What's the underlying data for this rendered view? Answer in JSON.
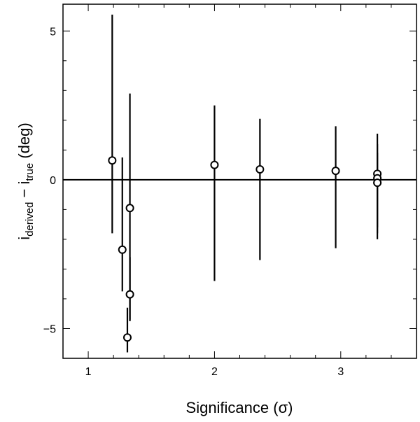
{
  "chart_data": {
    "type": "scatter",
    "title": "",
    "xlabel": "Significance (σ)",
    "ylabel": {
      "main": "i",
      "sub1": "derived",
      "minus": " − i",
      "sub2": "true",
      "tail": " (deg)"
    },
    "xlim": [
      0.8,
      3.6
    ],
    "ylim": [
      -6.0,
      5.9
    ],
    "x_ticks": [
      {
        "value": 1,
        "label": "1"
      },
      {
        "value": 2,
        "label": "2"
      },
      {
        "value": 3,
        "label": "3"
      }
    ],
    "y_ticks": [
      {
        "value": -5,
        "label": "−5"
      },
      {
        "value": 0,
        "label": "0"
      },
      {
        "value": 5,
        "label": "5"
      }
    ],
    "x_minor_step": 0.2,
    "y_minor_step": 1,
    "reference_line_y": 0,
    "grid": false,
    "points": [
      {
        "x": 1.19,
        "y": 0.65,
        "ylo": -1.8,
        "yhi": 5.55
      },
      {
        "x": 1.27,
        "y": -2.35,
        "ylo": -3.75,
        "yhi": 0.75
      },
      {
        "x": 1.33,
        "y": -0.95,
        "ylo": -4.75,
        "yhi": 2.9
      },
      {
        "x": 1.33,
        "y": -3.85,
        "ylo": -4.7,
        "yhi": -2.6
      },
      {
        "x": 1.31,
        "y": -5.3,
        "ylo": -5.8,
        "yhi": -4.3
      },
      {
        "x": 2.0,
        "y": 0.5,
        "ylo": -3.4,
        "yhi": 2.5
      },
      {
        "x": 2.36,
        "y": 0.35,
        "ylo": -2.7,
        "yhi": 2.05
      },
      {
        "x": 2.96,
        "y": 0.3,
        "ylo": -2.3,
        "yhi": 1.8
      },
      {
        "x": 3.29,
        "y": 0.2,
        "ylo": -2.0,
        "yhi": 1.55
      },
      {
        "x": 3.29,
        "y": 0.05,
        "ylo": -1.8,
        "yhi": 1.2
      },
      {
        "x": 3.29,
        "y": -0.1,
        "ylo": -1.6,
        "yhi": 0.9
      }
    ]
  }
}
